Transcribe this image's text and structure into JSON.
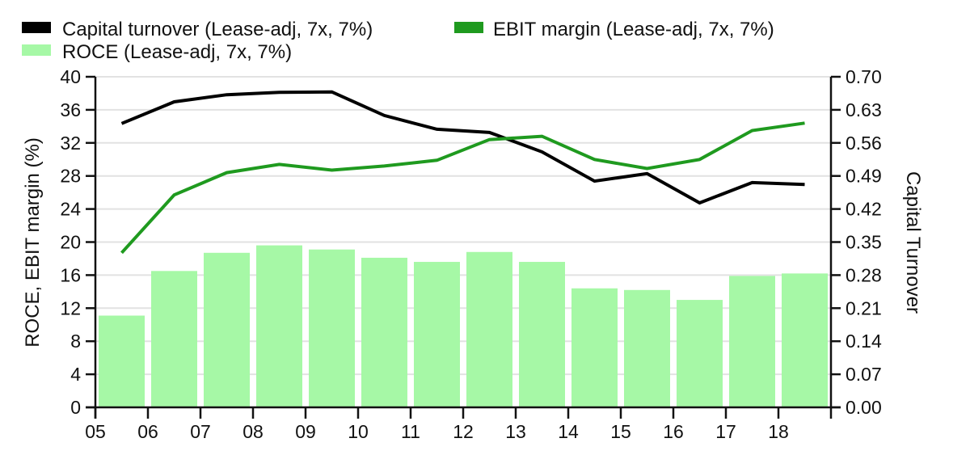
{
  "chart_data": {
    "type": "bar+line",
    "title": "",
    "xlabel": "",
    "ylabel": "ROCE, EBIT margin (%)",
    "y2label": "Capital Turnover",
    "ylim": [
      0,
      40
    ],
    "y2lim": [
      0,
      0.7
    ],
    "yticks": [
      "0",
      "4",
      "8",
      "12",
      "16",
      "20",
      "24",
      "28",
      "32",
      "36",
      "40"
    ],
    "y2ticks": [
      "0.00",
      "0.07",
      "0.14",
      "0.21",
      "0.28",
      "0.35",
      "0.42",
      "0.49",
      "0.56",
      "0.63",
      "0.70"
    ],
    "xticks": [
      "05",
      "06",
      "07",
      "08",
      "09",
      "10",
      "11",
      "12",
      "13",
      "14",
      "15",
      "16",
      "17",
      "18"
    ],
    "grid": true,
    "legend_position": "top",
    "categories": [
      "05",
      "06",
      "07",
      "08",
      "09",
      "10",
      "11",
      "12",
      "13",
      "14",
      "15",
      "16",
      "17",
      "18"
    ],
    "series": [
      {
        "name": "Capital turnover (Lease-adj, 7x, 7%)",
        "type": "line",
        "axis": "right",
        "color": "#000000",
        "values": [
          0.601,
          0.647,
          0.662,
          0.667,
          0.668,
          0.618,
          0.589,
          0.582,
          0.541,
          0.479,
          0.495,
          0.433,
          0.476,
          0.472
        ]
      },
      {
        "name": "EBIT margin (Lease-adj, 7x, 7%)",
        "type": "line",
        "axis": "left",
        "color": "#1f9a1f",
        "values": [
          18.7,
          25.7,
          28.4,
          29.4,
          28.7,
          29.2,
          29.9,
          32.4,
          32.8,
          30.0,
          28.9,
          30.0,
          33.5,
          34.4
        ]
      },
      {
        "name": "ROCE (Lease-adj, 7x, 7%)",
        "type": "bar",
        "axis": "left",
        "color": "#a6f8a6",
        "values": [
          11.1,
          16.5,
          18.7,
          19.6,
          19.1,
          18.1,
          17.6,
          18.8,
          17.6,
          14.4,
          14.2,
          13.0,
          15.9,
          16.2
        ]
      }
    ],
    "legend": [
      {
        "label": "Capital turnover (Lease-adj, 7x, 7%)",
        "color": "#000000"
      },
      {
        "label": "EBIT margin (Lease-adj, 7x, 7%)",
        "color": "#1f9a1f"
      },
      {
        "label": "ROCE (Lease-adj, 7x, 7%)",
        "color": "#a6f8a6"
      }
    ]
  }
}
